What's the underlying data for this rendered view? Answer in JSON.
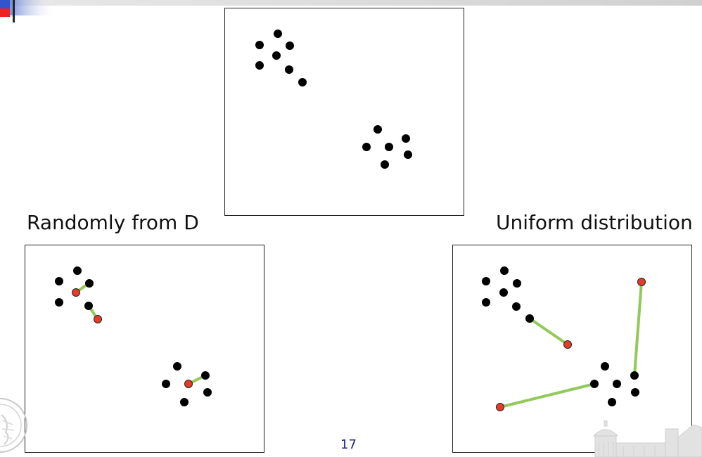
{
  "slide": {
    "caption_left": "Randomly from D",
    "caption_right": "Uniform distribution",
    "page_number": "17"
  },
  "colors": {
    "data_point": "#000000",
    "center_point": "#e53c27",
    "assignment_line": "#92c95a",
    "frame": "#222222",
    "page_number": "#1a237e"
  },
  "decorations": {
    "top_left": "slide-template-logo",
    "bottom_left": "university-seal-watermark",
    "bottom_right": "building-silhouette-watermark"
  }
}
